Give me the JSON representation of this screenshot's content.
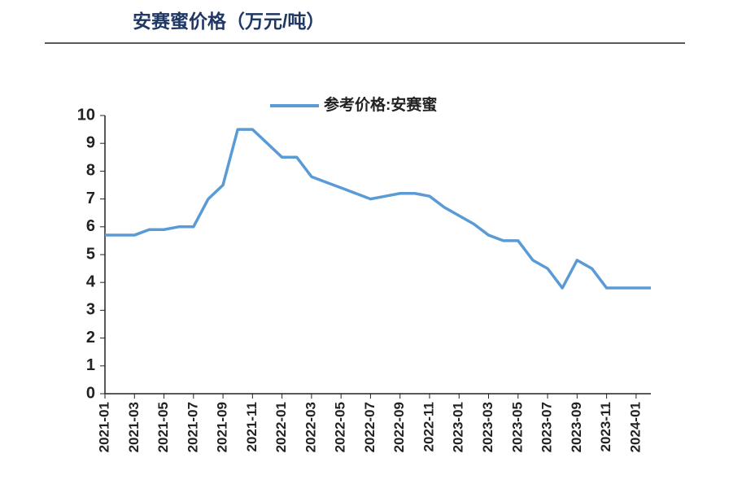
{
  "chart_data": {
    "type": "line",
    "title": "安赛蜜价格（万元/吨）",
    "x": [
      "2021-01",
      "2021-02",
      "2021-03",
      "2021-04",
      "2021-05",
      "2021-06",
      "2021-07",
      "2021-08",
      "2021-09",
      "2021-10",
      "2021-11",
      "2021-12",
      "2022-01",
      "2022-02",
      "2022-03",
      "2022-04",
      "2022-05",
      "2022-06",
      "2022-07",
      "2022-08",
      "2022-09",
      "2022-10",
      "2022-11",
      "2022-12",
      "2023-01",
      "2023-02",
      "2023-03",
      "2023-04",
      "2023-05",
      "2023-06",
      "2023-07",
      "2023-08",
      "2023-09",
      "2023-10",
      "2023-11",
      "2023-12",
      "2024-01",
      "2024-02"
    ],
    "series": [
      {
        "name": "参考价格:安赛蜜",
        "color": "#5b9bd5",
        "values": [
          5.7,
          5.7,
          5.7,
          5.9,
          5.9,
          6.0,
          6.0,
          7.0,
          7.5,
          9.5,
          9.5,
          9.0,
          8.5,
          8.5,
          7.8,
          7.6,
          7.4,
          7.2,
          7.0,
          7.1,
          7.2,
          7.2,
          7.1,
          6.7,
          6.4,
          6.1,
          5.7,
          5.5,
          5.5,
          4.8,
          4.5,
          3.8,
          4.8,
          4.5,
          3.8,
          3.8,
          3.8,
          3.8
        ]
      }
    ],
    "xlim": [
      "2021-01",
      "2024-02"
    ],
    "xticks": [
      "2021-01",
      "2021-03",
      "2021-05",
      "2021-07",
      "2021-09",
      "2021-11",
      "2022-01",
      "2022-03",
      "2022-05",
      "2022-07",
      "2022-09",
      "2022-11",
      "2023-01",
      "2023-03",
      "2023-05",
      "2023-07",
      "2023-09",
      "2023-11",
      "2024-01"
    ],
    "ylim": [
      0,
      10
    ],
    "yticks": [
      0,
      1,
      2,
      3,
      4,
      5,
      6,
      7,
      8,
      9,
      10
    ],
    "grid": false
  }
}
